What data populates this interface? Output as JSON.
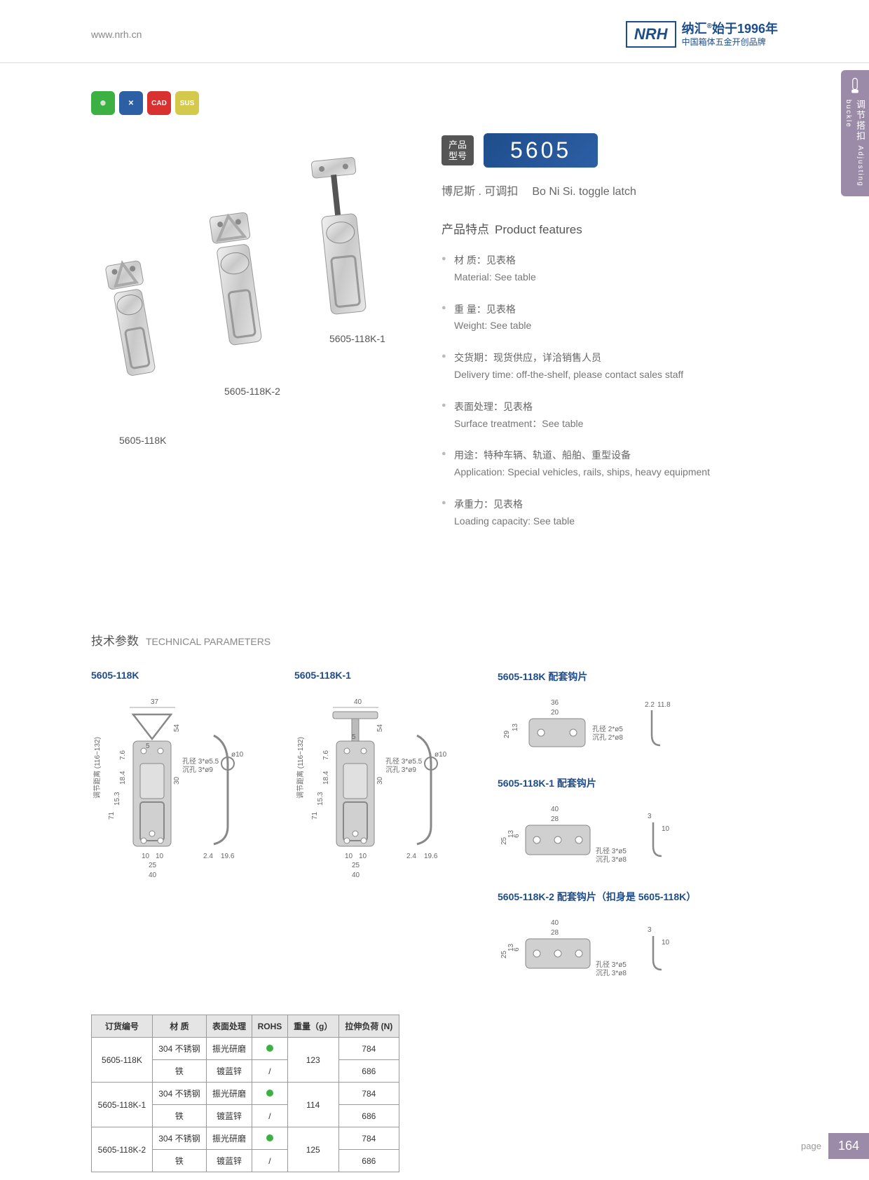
{
  "header": {
    "url": "www.nrh.cn",
    "brand": "NRH",
    "cn": "纳汇",
    "year": "始于1996年",
    "sub": "中国箱体五金开创品牌"
  },
  "sideTab": {
    "cn": "调节搭扣",
    "en": "Adjusting buckle"
  },
  "badges": [
    {
      "bg": "#3cb043",
      "txt": "⊕"
    },
    {
      "bg": "#2d5fa5",
      "txt": "✕"
    },
    {
      "bg": "#d93030",
      "txt": "CAD"
    },
    {
      "bg": "#d4c94a",
      "txt": "SUS"
    }
  ],
  "productLabels": {
    "a": "5605-118K",
    "b": "5605-118K-2",
    "c": "5605-118K-1"
  },
  "model": {
    "label1": "产品",
    "label2": "型号",
    "num": "5605"
  },
  "subtitle": {
    "cn": "博尼斯 . 可调扣",
    "en": "Bo Ni Si. toggle latch"
  },
  "featuresTitle": {
    "cn": "产品特点",
    "en": "Product features"
  },
  "features": [
    {
      "cn": "材 质：见表格",
      "en": "Material: See table"
    },
    {
      "cn": "重 量：见表格",
      "en": "Weight: See table"
    },
    {
      "cn": "交货期：现货供应，详洽销售人员",
      "en": "Delivery time: off-the-shelf, please contact sales staff"
    },
    {
      "cn": "表面处理：见表格",
      "en": "Surface treatment：See table"
    },
    {
      "cn": "用途：特种车辆、轨道、船舶、重型设备",
      "en": "Application: Special vehicles, rails, ships, heavy equipment"
    },
    {
      "cn": "承重力：见表格",
      "en": "Loading capacity: See table"
    }
  ],
  "techTitle": {
    "cn": "技术参数",
    "en": "TECHNICAL PARAMETERS"
  },
  "diagrams": {
    "d1": {
      "label": "5605-118K",
      "w": "37",
      "h": "54",
      "adj": "调节距离 (116~132)",
      "dims": [
        "71",
        "15.3",
        "18.4",
        "7.6",
        "5",
        "30",
        "10",
        "10",
        "25",
        "40",
        "2.4",
        "19.6",
        "ø10"
      ],
      "notes": [
        "孔径 3*ø5.5",
        "沉孔 3*ø9"
      ]
    },
    "d2": {
      "label": "5605-118K-1",
      "w": "40",
      "dims": [
        "54",
        "5",
        "7.6",
        "18.4",
        "15.3",
        "71",
        "30",
        "10",
        "10",
        "25",
        "40",
        "2.4",
        "19.6",
        "ø10"
      ],
      "notes": [
        "孔径 3*ø5.5",
        "沉孔 3*ø9"
      ]
    },
    "d3": {
      "label": "5605-118K 配套钩片",
      "dims": [
        "36",
        "20",
        "13",
        "29",
        "2.2",
        "11.8"
      ],
      "notes": [
        "孔径 2*ø5",
        "沉孔 2*ø8"
      ]
    },
    "d4": {
      "label": "5605-118K-1 配套钩片",
      "dims": [
        "40",
        "28",
        "6",
        "13",
        "25",
        "3",
        "10"
      ],
      "notes": [
        "孔径 3*ø5",
        "沉孔 3*ø8"
      ]
    },
    "d5": {
      "label": "5605-118K-2 配套钩片（扣身是 5605-118K）",
      "dims": [
        "40",
        "28",
        "6",
        "13",
        "25",
        "3",
        "10"
      ],
      "notes": [
        "孔径 3*ø5",
        "沉孔 3*ø8"
      ]
    }
  },
  "table": {
    "headers": [
      "订货编号",
      "材 质",
      "表面处理",
      "ROHS",
      "重量（g）",
      "拉伸负荷 (N)"
    ],
    "rows": [
      [
        "5605-118K",
        "304 不锈钢",
        "振光研磨",
        "dot",
        "123",
        "784"
      ],
      [
        "",
        "铁",
        "镀蓝锌",
        "/",
        "",
        "686"
      ],
      [
        "5605-118K-1",
        "304 不锈钢",
        "振光研磨",
        "dot",
        "114",
        "784"
      ],
      [
        "",
        "铁",
        "镀蓝锌",
        "/",
        "",
        "686"
      ],
      [
        "5605-118K-2",
        "304 不锈钢",
        "振光研磨",
        "dot",
        "125",
        "784"
      ],
      [
        "",
        "铁",
        "镀蓝锌",
        "/",
        "",
        "686"
      ]
    ]
  },
  "footer": {
    "label": "page",
    "num": "164"
  }
}
